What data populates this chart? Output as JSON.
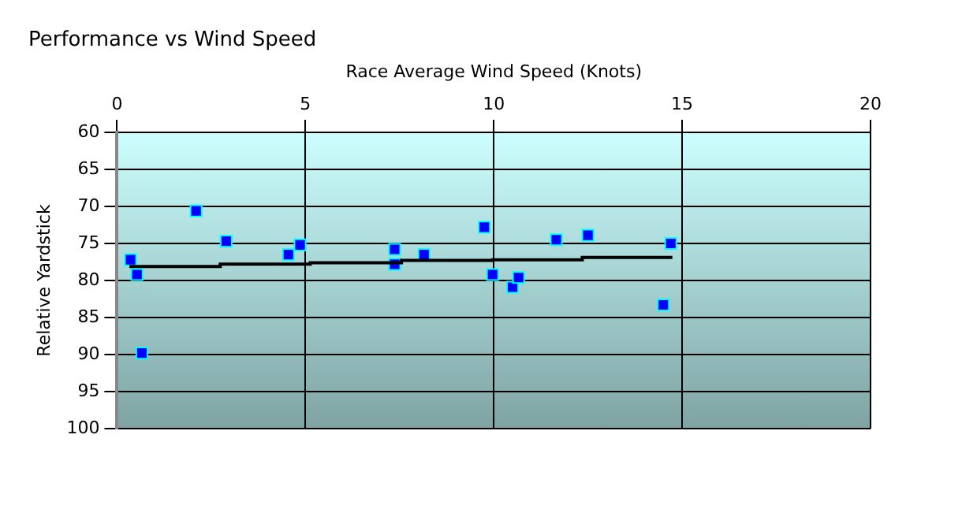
{
  "chart_data": {
    "type": "scatter",
    "title": "Performance vs Wind Speed",
    "xlabel": "Race Average Wind Speed (Knots)",
    "ylabel": "Relative Yardstick",
    "xlim": [
      0,
      20
    ],
    "xticks": [
      0,
      5,
      10,
      15,
      20
    ],
    "ylim": [
      100,
      60
    ],
    "yticks": [
      60,
      65,
      70,
      75,
      80,
      85,
      90,
      95,
      100
    ],
    "grid": true,
    "series": [
      {
        "marker": "square",
        "color": "#0000ff",
        "x": [
          0.36,
          0.53,
          0.66,
          2.1,
          2.9,
          4.55,
          4.86,
          7.37,
          7.37,
          8.15,
          9.75,
          9.97,
          10.5,
          10.66,
          11.66,
          12.5,
          14.5,
          14.7
        ],
        "values": [
          77.2,
          79.2,
          89.8,
          70.6,
          74.7,
          76.5,
          75.2,
          77.8,
          75.8,
          76.5,
          72.8,
          79.2,
          80.9,
          79.6,
          74.5,
          73.9,
          83.3,
          75.0
        ]
      },
      {
        "type": "step",
        "color": "#000000",
        "x": [
          0.33,
          2.74,
          5.13,
          7.55,
          9.97,
          12.35,
          14.74
        ],
        "values": [
          78.1,
          77.8,
          77.6,
          77.3,
          77.2,
          76.9,
          76.9
        ]
      }
    ]
  }
}
